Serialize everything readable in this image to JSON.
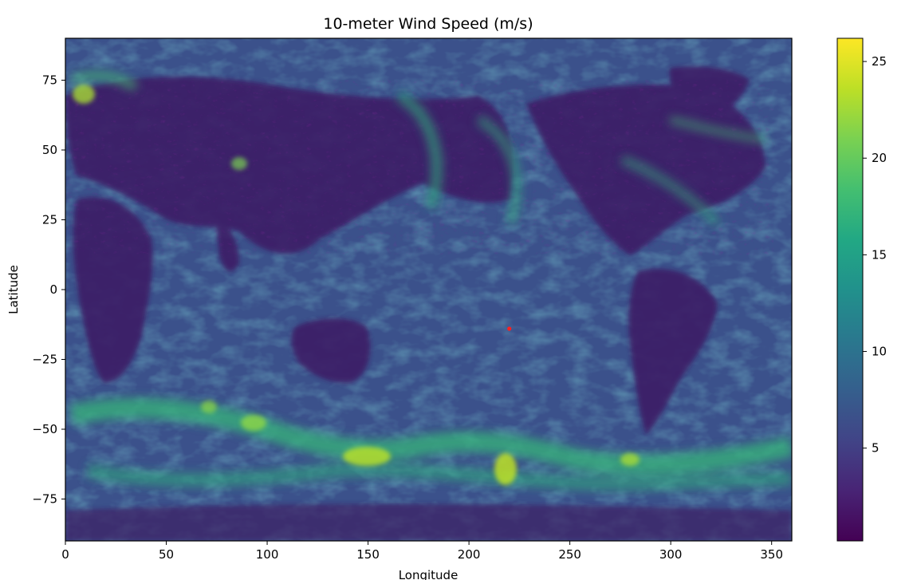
{
  "chart_data": {
    "type": "heatmap",
    "title": "10-meter Wind Speed (m/s)",
    "xlabel": "Longitude",
    "ylabel": "Latitude",
    "xlim": [
      0,
      360
    ],
    "ylim": [
      -90,
      90
    ],
    "x_ticks": [
      0,
      50,
      100,
      150,
      200,
      250,
      300,
      350
    ],
    "y_ticks": [
      75,
      50,
      25,
      0,
      -25,
      -50,
      -75
    ],
    "x_tick_labels": [
      "0",
      "50",
      "100",
      "150",
      "200",
      "250",
      "300",
      "350"
    ],
    "y_tick_labels": [
      "75",
      "50",
      "25",
      "0",
      "−25",
      "−50",
      "−75"
    ],
    "colorbar": {
      "colormap": "viridis",
      "range": [
        0.2,
        26.2
      ],
      "ticks": [
        5,
        10,
        15,
        20,
        25
      ],
      "tick_labels": [
        "5",
        "10",
        "15",
        "20",
        "25"
      ]
    },
    "marker": {
      "lon": 220,
      "lat": -14,
      "color": "#ff2020"
    },
    "grid": false
  }
}
